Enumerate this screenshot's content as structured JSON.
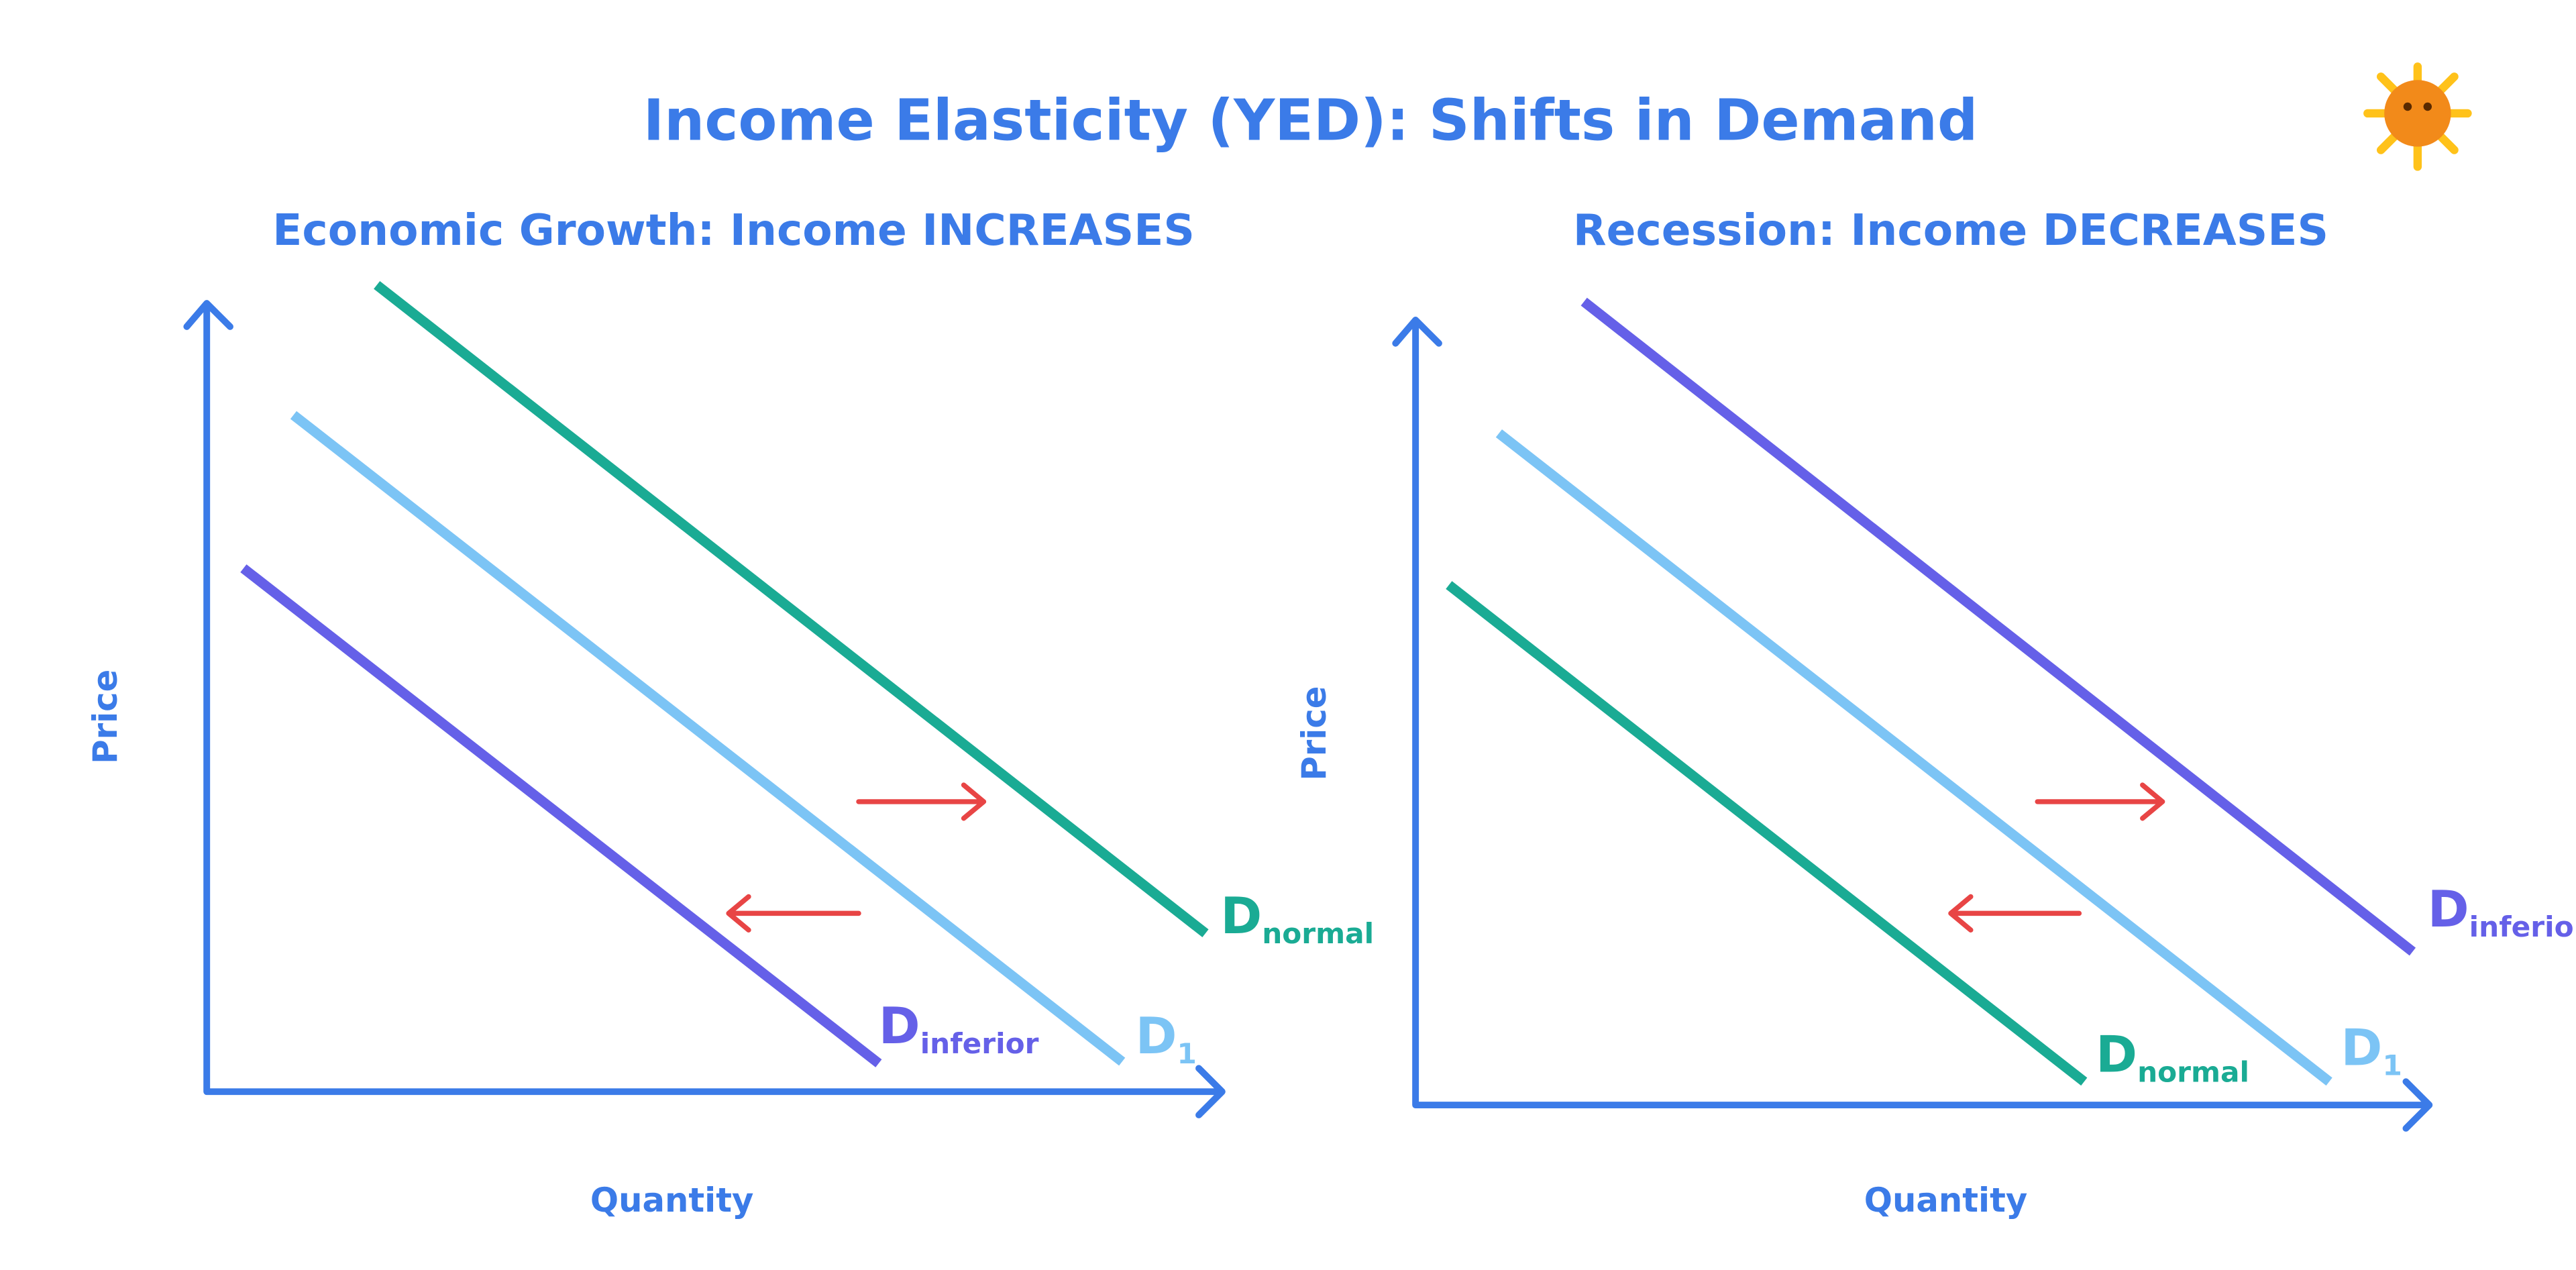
{
  "header": {
    "title": "Income Elasticity (YED): Shifts in Demand"
  },
  "panels": [
    {
      "title": "Economic Growth: Income INCREASES",
      "y_label": "Price",
      "x_label": "Quantity",
      "curves": [
        {
          "main": "D",
          "sub": "normal"
        },
        {
          "main": "D",
          "sub": "1"
        },
        {
          "main": "D",
          "sub": "inferior"
        }
      ]
    },
    {
      "title": "Recession: Income DECREASES",
      "y_label": "Price",
      "x_label": "Quantity",
      "curves": [
        {
          "main": "D",
          "sub": "inferior"
        },
        {
          "main": "D",
          "sub": "1"
        },
        {
          "main": "D",
          "sub": "normal"
        }
      ]
    }
  ]
}
